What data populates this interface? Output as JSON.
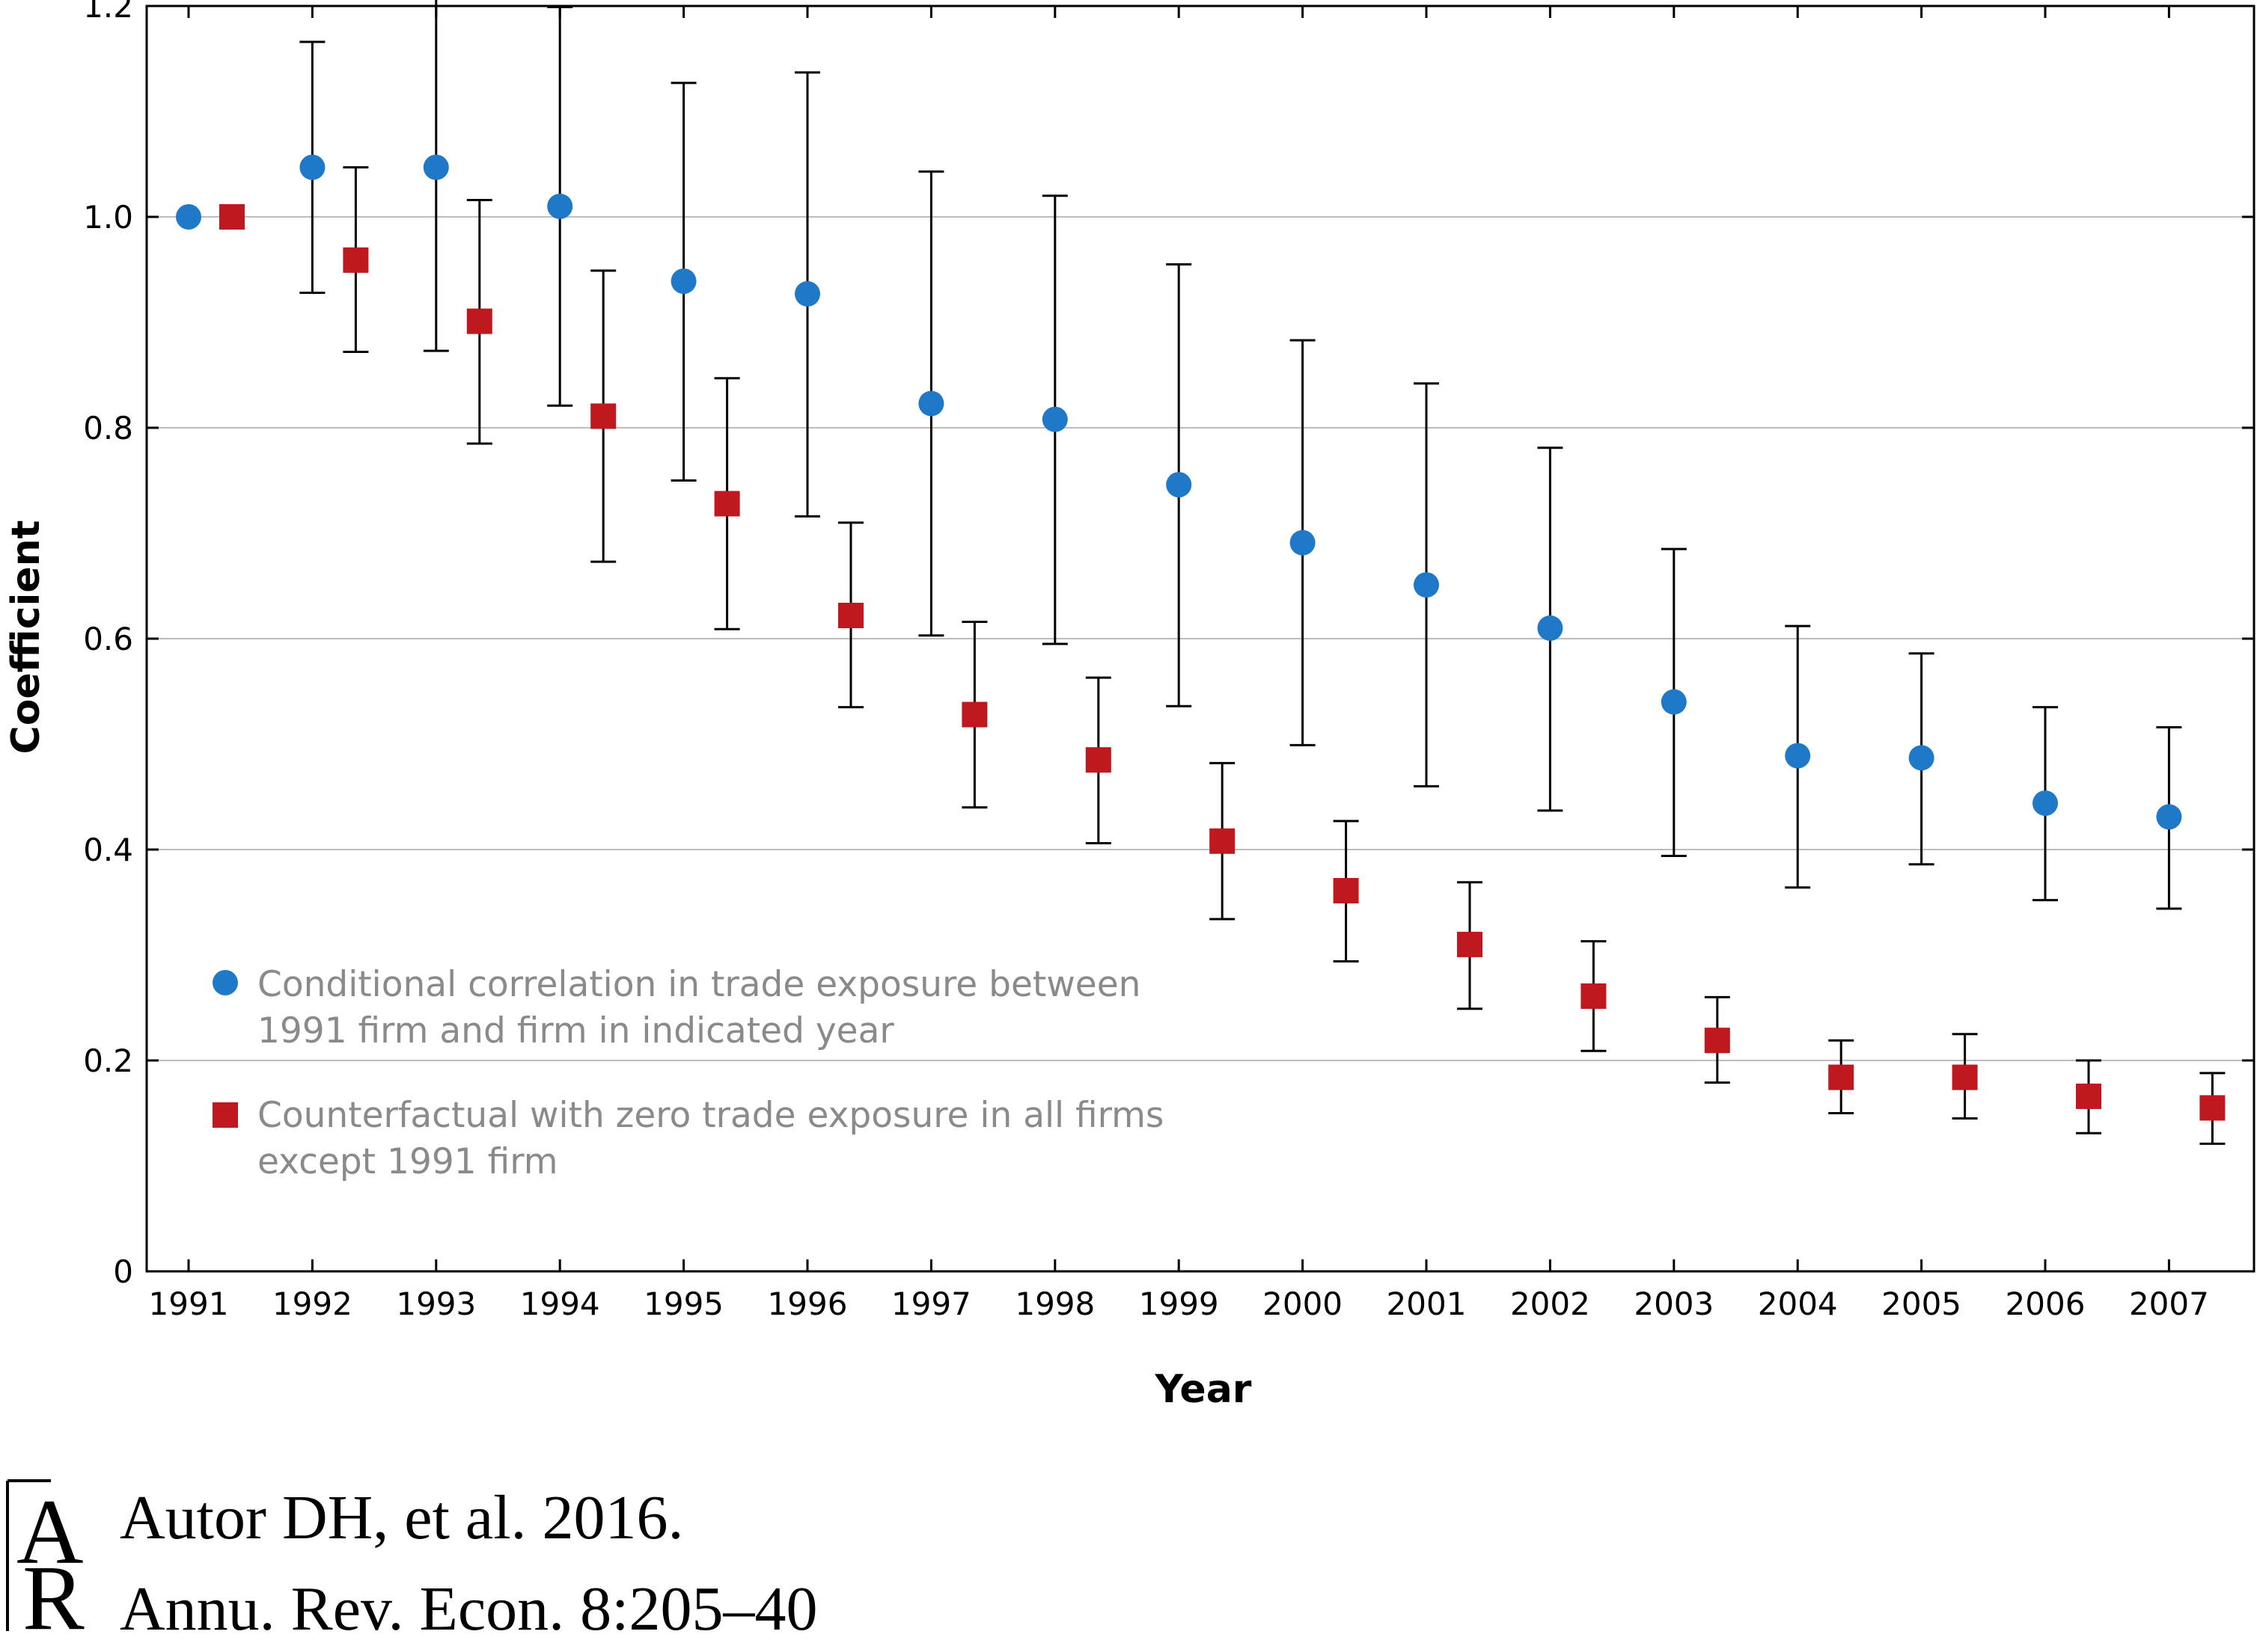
{
  "chart_data": {
    "type": "scatter",
    "xlabel": "Year",
    "ylabel": "Coefficient",
    "ylim": [
      0,
      1.2
    ],
    "yticks": [
      "0",
      "0.2",
      "0.4",
      "0.6",
      "0.8",
      "1.0",
      "1.2"
    ],
    "grid": true,
    "categories": [
      "1991",
      "1992",
      "1993",
      "1994",
      "1995",
      "1996",
      "1997",
      "1998",
      "1999",
      "2000",
      "2001",
      "2002",
      "2003",
      "2004",
      "2005",
      "2006",
      "2007"
    ],
    "series": [
      {
        "name": "Conditional correlation in trade exposure between 1991 firm and firm in indicated year",
        "marker": "circle",
        "color": "#1f78c8",
        "values": [
          1.0,
          1.047,
          1.047,
          1.01,
          0.939,
          0.927,
          0.823,
          0.808,
          0.746,
          0.691,
          0.651,
          0.61,
          0.54,
          0.489,
          0.487,
          0.444,
          0.431
        ],
        "lower": [
          null,
          0.928,
          0.873,
          0.821,
          0.75,
          0.716,
          0.603,
          0.595,
          0.536,
          0.499,
          0.46,
          0.437,
          0.394,
          0.364,
          0.386,
          0.352,
          0.344
        ],
        "upper": [
          null,
          1.166,
          1.222,
          1.199,
          1.127,
          1.137,
          1.043,
          1.02,
          0.955,
          0.883,
          0.842,
          0.781,
          0.685,
          0.612,
          0.586,
          0.535,
          0.516
        ]
      },
      {
        "name": "Counterfactual with zero trade exposure in all firms except 1991 firm",
        "marker": "square",
        "color": "#c0181f",
        "values": [
          1.0,
          0.959,
          0.901,
          0.811,
          0.728,
          0.622,
          0.528,
          0.485,
          0.408,
          0.361,
          0.31,
          0.261,
          0.219,
          0.184,
          0.184,
          0.166,
          0.155
        ],
        "lower": [
          null,
          0.872,
          0.785,
          0.673,
          0.609,
          0.535,
          0.44,
          0.406,
          0.334,
          0.294,
          0.249,
          0.209,
          0.179,
          0.15,
          0.145,
          0.131,
          0.121
        ],
        "upper": [
          null,
          1.047,
          1.016,
          0.949,
          0.847,
          0.71,
          0.616,
          0.563,
          0.482,
          0.427,
          0.369,
          0.313,
          0.26,
          0.219,
          0.225,
          0.2,
          0.188
        ]
      }
    ],
    "legend_position": "lower-left"
  },
  "citation": {
    "logo_letters": "AR",
    "line1": "Autor DH, et al. 2016.",
    "line2": "Annu. Rev. Econ. 8:205–40"
  }
}
